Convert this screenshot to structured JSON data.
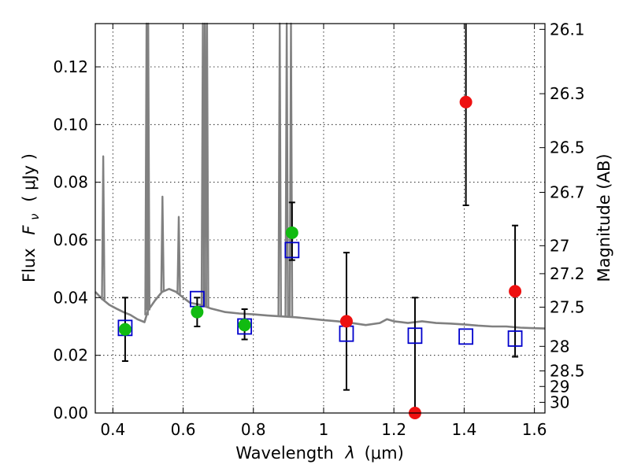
{
  "chart_data": {
    "type": "scatter",
    "xlabel": "Wavelength",
    "xlabel_symbol": "λ",
    "xlabel_unit": "(μm)",
    "ylabel_prefix": "Flux",
    "ylabel_symbol_base": "F",
    "ylabel_symbol_sub": "ν",
    "ylabel_unit": "( μJy )",
    "ylabel_right": "Magnitude (AB)",
    "xlim": [
      0.35,
      1.63
    ],
    "ylim": [
      0.0,
      0.135
    ],
    "grid": true,
    "x_ticks": [
      {
        "value": 0.4,
        "label": "0.4"
      },
      {
        "value": 0.6,
        "label": "0.6"
      },
      {
        "value": 0.8,
        "label": "0.8"
      },
      {
        "value": 1.0,
        "label": "1"
      },
      {
        "value": 1.2,
        "label": "1.2"
      },
      {
        "value": 1.4,
        "label": "1.4"
      },
      {
        "value": 1.6,
        "label": "1.6"
      }
    ],
    "y_ticks": [
      {
        "value": 0.0,
        "label": "0.00"
      },
      {
        "value": 0.02,
        "label": "0.02"
      },
      {
        "value": 0.04,
        "label": "0.04"
      },
      {
        "value": 0.06,
        "label": "0.06"
      },
      {
        "value": 0.08,
        "label": "0.08"
      },
      {
        "value": 0.1,
        "label": "0.10"
      },
      {
        "value": 0.12,
        "label": "0.12"
      }
    ],
    "right_ticks": [
      {
        "label": "26.1",
        "flux": 0.133
      },
      {
        "label": "26.3",
        "flux": 0.1107
      },
      {
        "label": "26.5",
        "flux": 0.092
      },
      {
        "label": "26.7",
        "flux": 0.0765
      },
      {
        "label": "27",
        "flux": 0.058
      },
      {
        "label": "27.2",
        "flux": 0.0483
      },
      {
        "label": "27.5",
        "flux": 0.0367
      },
      {
        "label": "28",
        "flux": 0.0231
      },
      {
        "label": "28.5",
        "flux": 0.0146
      },
      {
        "label": "29",
        "flux": 0.0092
      },
      {
        "label": "30",
        "flux": 0.0037
      }
    ],
    "series": [
      {
        "marker": "circle",
        "color": "#11bb11",
        "points": [
          {
            "x": 0.435,
            "y": 0.029,
            "err_low": 0.018,
            "err_high": 0.04
          },
          {
            "x": 0.64,
            "y": 0.035,
            "err_low": 0.03,
            "err_high": 0.04
          },
          {
            "x": 0.775,
            "y": 0.0305,
            "err_low": 0.0255,
            "err_high": 0.036
          },
          {
            "x": 0.91,
            "y": 0.0625,
            "err_low": 0.053,
            "err_high": 0.073
          }
        ]
      },
      {
        "marker": "circle",
        "color": "#ee1111",
        "points": [
          {
            "x": 1.065,
            "y": 0.0318,
            "err_low": 0.008,
            "err_high": 0.0556
          },
          {
            "x": 1.26,
            "y": 0.0,
            "err_low": 0.0,
            "err_high": 0.04
          },
          {
            "x": 1.405,
            "y": 0.1078,
            "err_low": 0.072,
            "err_high": 0.135
          },
          {
            "x": 1.545,
            "y": 0.0422,
            "err_low": 0.0195,
            "err_high": 0.065
          }
        ]
      },
      {
        "marker": "open-square",
        "color": "#0000cc",
        "points": [
          {
            "x": 0.435,
            "y": 0.0295
          },
          {
            "x": 0.64,
            "y": 0.0395
          },
          {
            "x": 0.775,
            "y": 0.03
          },
          {
            "x": 0.91,
            "y": 0.0565
          },
          {
            "x": 1.065,
            "y": 0.0275
          },
          {
            "x": 1.26,
            "y": 0.0268
          },
          {
            "x": 1.405,
            "y": 0.0265
          },
          {
            "x": 1.545,
            "y": 0.0258
          }
        ]
      }
    ],
    "model_spectrum": {
      "color": "#808080",
      "continuum": [
        [
          0.35,
          0.042
        ],
        [
          0.37,
          0.0395
        ],
        [
          0.39,
          0.0375
        ],
        [
          0.41,
          0.0362
        ],
        [
          0.43,
          0.035
        ],
        [
          0.45,
          0.034
        ],
        [
          0.47,
          0.0325
        ],
        [
          0.49,
          0.0315
        ],
        [
          0.5,
          0.0355
        ],
        [
          0.52,
          0.039
        ],
        [
          0.54,
          0.042
        ],
        [
          0.56,
          0.043
        ],
        [
          0.58,
          0.042
        ],
        [
          0.6,
          0.04
        ],
        [
          0.62,
          0.0382
        ],
        [
          0.65,
          0.0375
        ],
        [
          0.68,
          0.0362
        ],
        [
          0.72,
          0.035
        ],
        [
          0.76,
          0.0345
        ],
        [
          0.8,
          0.0342
        ],
        [
          0.84,
          0.0338
        ],
        [
          0.88,
          0.0335
        ],
        [
          0.92,
          0.0332
        ],
        [
          0.96,
          0.0327
        ],
        [
          1.0,
          0.0322
        ],
        [
          1.04,
          0.0318
        ],
        [
          1.08,
          0.0312
        ],
        [
          1.12,
          0.0305
        ],
        [
          1.16,
          0.0312
        ],
        [
          1.18,
          0.0325
        ],
        [
          1.2,
          0.0318
        ],
        [
          1.24,
          0.0312
        ],
        [
          1.28,
          0.0318
        ],
        [
          1.32,
          0.0312
        ],
        [
          1.36,
          0.031
        ],
        [
          1.4,
          0.0307
        ],
        [
          1.44,
          0.0303
        ],
        [
          1.48,
          0.03
        ],
        [
          1.52,
          0.03
        ],
        [
          1.56,
          0.0296
        ],
        [
          1.6,
          0.0294
        ],
        [
          1.63,
          0.0293
        ]
      ],
      "emission_lines": [
        {
          "x": 0.3727,
          "peak": 0.089
        },
        {
          "x": 0.4959,
          "peak": 0.135
        },
        {
          "x": 0.5007,
          "peak": 0.135
        },
        {
          "x": 0.5412,
          "peak": 0.075
        },
        {
          "x": 0.5876,
          "peak": 0.068
        },
        {
          "x": 0.6563,
          "peak": 0.135
        },
        {
          "x": 0.662,
          "peak": 0.135
        },
        {
          "x": 0.668,
          "peak": 0.135
        },
        {
          "x": 0.875,
          "peak": 0.135
        },
        {
          "x": 0.895,
          "peak": 0.135
        },
        {
          "x": 0.907,
          "peak": 0.135
        }
      ]
    }
  }
}
